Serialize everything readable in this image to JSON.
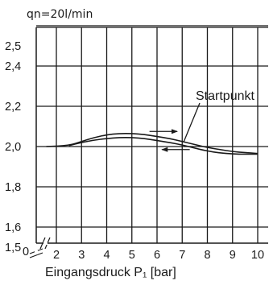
{
  "chart_data": {
    "type": "line",
    "subtitle": "qn=20l/min",
    "xlabel": "Eingangsdruck P₁ [bar]",
    "ylabel": "",
    "xlim": [
      2,
      10
    ],
    "ylim": [
      1.5,
      2.6
    ],
    "x_ticks": [
      2,
      3,
      4,
      5,
      6,
      7,
      8,
      9,
      10
    ],
    "x_tick_labels": [
      "2",
      "3",
      "4",
      "5",
      "6",
      "7",
      "8",
      "9",
      "10"
    ],
    "x_zero_label": "0",
    "x_break_symbol": "≈",
    "y_tick_labels": [
      {
        "value": 2.5,
        "label": "2,5"
      },
      {
        "value": 2.4,
        "label": "2,4"
      },
      {
        "value": 2.2,
        "label": "2,2"
      },
      {
        "value": 2.0,
        "label": "2,0"
      },
      {
        "value": 1.8,
        "label": "1,8"
      },
      {
        "value": 1.6,
        "label": "1,6"
      },
      {
        "value": 1.5,
        "label": "1,5"
      }
    ],
    "y_gridlines": [
      2.6,
      2.4,
      2.2,
      2.0,
      1.8,
      1.6
    ],
    "grid": true,
    "series": [
      {
        "x": [
          1.6,
          2.5,
          3.0,
          3.5,
          4.0,
          4.5,
          5.0,
          5.5,
          6.0,
          6.5,
          7.0,
          7.5,
          8.0,
          8.5,
          9.0,
          9.5,
          10.0
        ],
        "y": [
          2.0,
          2.005,
          2.025,
          2.045,
          2.058,
          2.065,
          2.065,
          2.06,
          2.05,
          2.04,
          2.025,
          2.01,
          1.995,
          1.985,
          1.975,
          1.97,
          1.965
        ]
      },
      {
        "x": [
          2.5,
          3.0,
          3.5,
          4.0,
          4.5,
          5.0,
          5.5,
          6.0,
          6.5,
          7.0,
          7.5,
          8.0,
          8.5,
          9.0,
          9.5,
          10.0
        ],
        "y": [
          2.005,
          2.02,
          2.032,
          2.04,
          2.045,
          2.045,
          2.04,
          2.03,
          2.02,
          2.008,
          1.992,
          1.978,
          1.968,
          1.963,
          1.962,
          1.962
        ]
      }
    ],
    "annotations": [
      {
        "text": "Startpunkt",
        "x": 7.05,
        "y": 2.02
      }
    ],
    "arrows": [
      {
        "direction": "right",
        "x_from": 5.7,
        "x_to": 6.8,
        "y": 2.075
      },
      {
        "direction": "left",
        "x_from": 7.3,
        "x_to": 6.2,
        "y": 1.985
      }
    ]
  }
}
